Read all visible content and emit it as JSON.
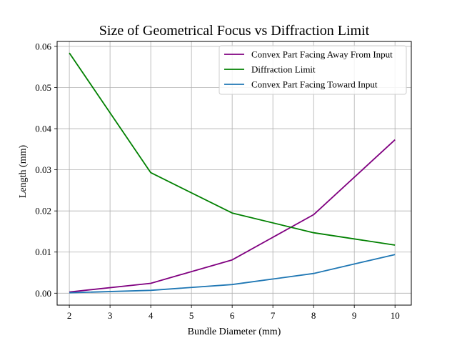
{
  "chart_data": {
    "type": "line",
    "title": "Size of Geometrical Focus vs Diffraction Limit",
    "xlabel": "Bundle Diameter (mm)",
    "ylabel": "Length (mm)",
    "xlim": [
      1.7,
      10.4
    ],
    "ylim": [
      -0.0029,
      0.0612
    ],
    "xticks": [
      "2",
      "3",
      "4",
      "5",
      "6",
      "7",
      "8",
      "9",
      "10"
    ],
    "yticks": [
      "0.00",
      "0.01",
      "0.02",
      "0.03",
      "0.04",
      "0.05",
      "0.06"
    ],
    "grid": true,
    "legend_position": "top-right",
    "series": [
      {
        "name": "Convex Part Facing Away From Input",
        "color": "#800080",
        "x": [
          2,
          4,
          6,
          8,
          10
        ],
        "y": [
          0.0003,
          0.0024,
          0.0081,
          0.0191,
          0.0373
        ]
      },
      {
        "name": "Diffraction Limit",
        "color": "#008000",
        "x": [
          2,
          4,
          6,
          8,
          10
        ],
        "y": [
          0.0584,
          0.0293,
          0.0195,
          0.0147,
          0.0117
        ]
      },
      {
        "name": "Convex Part Facing Toward Input",
        "color": "#1f77b4",
        "x": [
          2,
          4,
          6,
          8,
          10
        ],
        "y": [
          0.0001,
          0.0007,
          0.0021,
          0.0048,
          0.0094
        ]
      }
    ]
  }
}
